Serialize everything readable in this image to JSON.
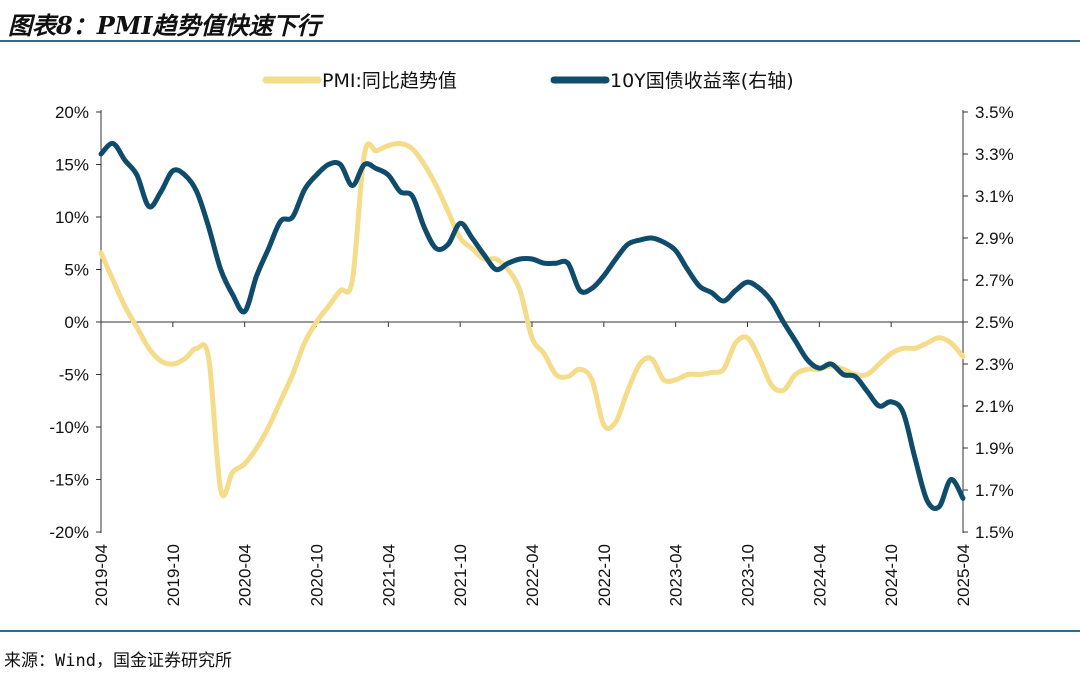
{
  "header": {
    "title": "图表8：PMI趋势值快速下行"
  },
  "footer": {
    "source": "来源：Wind，国金证券研究所"
  },
  "chart_data": {
    "type": "line",
    "x_tick_labels": [
      "2019-04",
      "2019-10",
      "2020-04",
      "2020-10",
      "2021-04",
      "2021-10",
      "2022-04",
      "2022-10",
      "2023-04",
      "2023-10",
      "2024-04",
      "2024-10",
      "2025-04"
    ],
    "x_range": [
      "2019-04",
      "2025-04"
    ],
    "y_left": {
      "ticks": [
        "20%",
        "15%",
        "10%",
        "5%",
        "0%",
        "-5%",
        "-10%",
        "-15%",
        "-20%"
      ],
      "range": [
        -20,
        20
      ]
    },
    "y_right": {
      "ticks": [
        "3.5%",
        "3.3%",
        "3.1%",
        "2.9%",
        "2.7%",
        "2.5%",
        "2.3%",
        "2.1%",
        "1.9%",
        "1.7%",
        "1.5%"
      ],
      "range": [
        1.5,
        3.5
      ]
    },
    "legend_position": "top",
    "series": [
      {
        "name": "PMI:同比趋势值",
        "axis": "left",
        "color": "#f5dc8a",
        "points": [
          [
            "2019-04",
            6.6
          ],
          [
            "2019-05",
            4.0
          ],
          [
            "2019-06",
            1.5
          ],
          [
            "2019-07",
            -0.5
          ],
          [
            "2019-08",
            -2.5
          ],
          [
            "2019-09",
            -3.7
          ],
          [
            "2019-10",
            -4.0
          ],
          [
            "2019-11",
            -3.5
          ],
          [
            "2019-12",
            -2.5
          ],
          [
            "2020-01",
            -3.5
          ],
          [
            "2020-02",
            -16.0
          ],
          [
            "2020-03",
            -14.3
          ],
          [
            "2020-04",
            -13.5
          ],
          [
            "2020-05",
            -12.0
          ],
          [
            "2020-06",
            -10.0
          ],
          [
            "2020-07",
            -7.5
          ],
          [
            "2020-08",
            -5.0
          ],
          [
            "2020-09",
            -2.0
          ],
          [
            "2020-10",
            0.0
          ],
          [
            "2020-11",
            1.5
          ],
          [
            "2020-12",
            3.0
          ],
          [
            "2021-01",
            4.0
          ],
          [
            "2021-02",
            16.0
          ],
          [
            "2021-03",
            16.3
          ],
          [
            "2021-04",
            16.8
          ],
          [
            "2021-05",
            17.0
          ],
          [
            "2021-06",
            16.5
          ],
          [
            "2021-07",
            15.0
          ],
          [
            "2021-08",
            13.0
          ],
          [
            "2021-09",
            10.5
          ],
          [
            "2021-10",
            8.0
          ],
          [
            "2021-11",
            7.0
          ],
          [
            "2021-12",
            6.0
          ],
          [
            "2022-01",
            6.0
          ],
          [
            "2022-02",
            5.0
          ],
          [
            "2022-03",
            3.0
          ],
          [
            "2022-04",
            -1.5
          ],
          [
            "2022-05",
            -3.0
          ],
          [
            "2022-06",
            -5.0
          ],
          [
            "2022-07",
            -5.2
          ],
          [
            "2022-08",
            -4.5
          ],
          [
            "2022-09",
            -5.5
          ],
          [
            "2022-10",
            -9.8
          ],
          [
            "2022-11",
            -9.5
          ],
          [
            "2022-12",
            -6.5
          ],
          [
            "2023-01",
            -4.0
          ],
          [
            "2023-02",
            -3.5
          ],
          [
            "2023-03",
            -5.5
          ],
          [
            "2023-04",
            -5.5
          ],
          [
            "2023-05",
            -5.0
          ],
          [
            "2023-06",
            -5.0
          ],
          [
            "2023-07",
            -4.8
          ],
          [
            "2023-08",
            -4.5
          ],
          [
            "2023-09",
            -2.0
          ],
          [
            "2023-10",
            -1.5
          ],
          [
            "2023-11",
            -3.5
          ],
          [
            "2023-12",
            -6.0
          ],
          [
            "2024-01",
            -6.5
          ],
          [
            "2024-02",
            -5.0
          ],
          [
            "2024-03",
            -4.5
          ],
          [
            "2024-04",
            -4.5
          ],
          [
            "2024-05",
            -4.2
          ],
          [
            "2024-06",
            -4.5
          ],
          [
            "2024-07",
            -5.0
          ],
          [
            "2024-08",
            -5.0
          ],
          [
            "2024-09",
            -4.0
          ],
          [
            "2024-10",
            -3.0
          ],
          [
            "2024-11",
            -2.5
          ],
          [
            "2024-12",
            -2.5
          ],
          [
            "2025-01",
            -2.0
          ],
          [
            "2025-02",
            -1.5
          ],
          [
            "2025-03",
            -2.0
          ],
          [
            "2025-04",
            -3.3
          ]
        ]
      },
      {
        "name": "10Y国债收益率(右轴)",
        "axis": "right",
        "color": "#0f4c6c",
        "points": [
          [
            "2019-04",
            3.3
          ],
          [
            "2019-05",
            3.35
          ],
          [
            "2019-06",
            3.27
          ],
          [
            "2019-07",
            3.2
          ],
          [
            "2019-08",
            3.05
          ],
          [
            "2019-09",
            3.12
          ],
          [
            "2019-10",
            3.22
          ],
          [
            "2019-11",
            3.2
          ],
          [
            "2019-12",
            3.12
          ],
          [
            "2020-01",
            2.95
          ],
          [
            "2020-02",
            2.75
          ],
          [
            "2020-03",
            2.63
          ],
          [
            "2020-04",
            2.55
          ],
          [
            "2020-05",
            2.72
          ],
          [
            "2020-06",
            2.85
          ],
          [
            "2020-07",
            2.98
          ],
          [
            "2020-08",
            3.0
          ],
          [
            "2020-09",
            3.13
          ],
          [
            "2020-10",
            3.2
          ],
          [
            "2020-11",
            3.25
          ],
          [
            "2020-12",
            3.25
          ],
          [
            "2021-01",
            3.15
          ],
          [
            "2021-02",
            3.25
          ],
          [
            "2021-03",
            3.23
          ],
          [
            "2021-04",
            3.2
          ],
          [
            "2021-05",
            3.12
          ],
          [
            "2021-06",
            3.1
          ],
          [
            "2021-07",
            2.95
          ],
          [
            "2021-08",
            2.85
          ],
          [
            "2021-09",
            2.87
          ],
          [
            "2021-10",
            2.97
          ],
          [
            "2021-11",
            2.9
          ],
          [
            "2021-12",
            2.82
          ],
          [
            "2022-01",
            2.75
          ],
          [
            "2022-02",
            2.78
          ],
          [
            "2022-03",
            2.8
          ],
          [
            "2022-04",
            2.8
          ],
          [
            "2022-05",
            2.78
          ],
          [
            "2022-06",
            2.78
          ],
          [
            "2022-07",
            2.78
          ],
          [
            "2022-08",
            2.65
          ],
          [
            "2022-09",
            2.66
          ],
          [
            "2022-10",
            2.72
          ],
          [
            "2022-11",
            2.8
          ],
          [
            "2022-12",
            2.87
          ],
          [
            "2023-01",
            2.89
          ],
          [
            "2023-02",
            2.9
          ],
          [
            "2023-03",
            2.88
          ],
          [
            "2023-04",
            2.84
          ],
          [
            "2023-05",
            2.75
          ],
          [
            "2023-06",
            2.67
          ],
          [
            "2023-07",
            2.64
          ],
          [
            "2023-08",
            2.6
          ],
          [
            "2023-09",
            2.65
          ],
          [
            "2023-10",
            2.69
          ],
          [
            "2023-11",
            2.66
          ],
          [
            "2023-12",
            2.6
          ],
          [
            "2024-01",
            2.5
          ],
          [
            "2024-02",
            2.41
          ],
          [
            "2024-03",
            2.32
          ],
          [
            "2024-04",
            2.28
          ],
          [
            "2024-05",
            2.3
          ],
          [
            "2024-06",
            2.25
          ],
          [
            "2024-07",
            2.24
          ],
          [
            "2024-08",
            2.17
          ],
          [
            "2024-09",
            2.1
          ],
          [
            "2024-10",
            2.12
          ],
          [
            "2024-11",
            2.07
          ],
          [
            "2024-12",
            1.85
          ],
          [
            "2025-01",
            1.65
          ],
          [
            "2025-02",
            1.62
          ],
          [
            "2025-03",
            1.75
          ],
          [
            "2025-04",
            1.66
          ]
        ]
      }
    ]
  }
}
